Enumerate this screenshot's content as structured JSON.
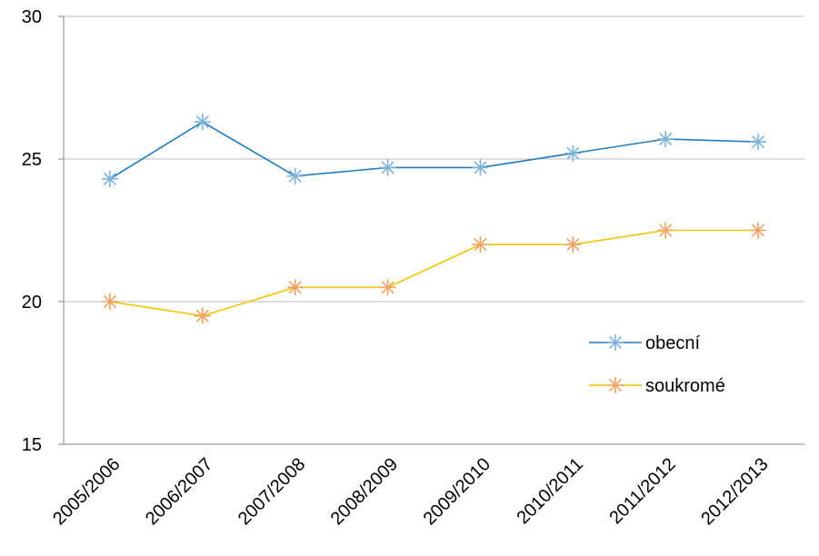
{
  "chart_data": {
    "type": "line",
    "title": "",
    "xlabel": "",
    "ylabel": "",
    "categories": [
      "2005/2006",
      "2006/2007",
      "2007/2008",
      "2008/2009",
      "2009/2010",
      "2010/2011",
      "2011/2012",
      "2012/2013"
    ],
    "ylim": [
      15,
      30
    ],
    "yticks": [
      15,
      20,
      25,
      30
    ],
    "grid": true,
    "legend_position": "right",
    "series": [
      {
        "name": "obecní",
        "color": "#1f7bbf",
        "marker_color": "#7eb3dc",
        "values": [
          24.3,
          26.3,
          24.4,
          24.7,
          24.7,
          25.2,
          25.7,
          25.6
        ]
      },
      {
        "name": "soukromé",
        "color": "#f5c400",
        "marker_color": "#f0a060",
        "values": [
          20.0,
          19.5,
          20.5,
          20.5,
          22.0,
          22.0,
          22.5,
          22.5
        ]
      }
    ]
  }
}
